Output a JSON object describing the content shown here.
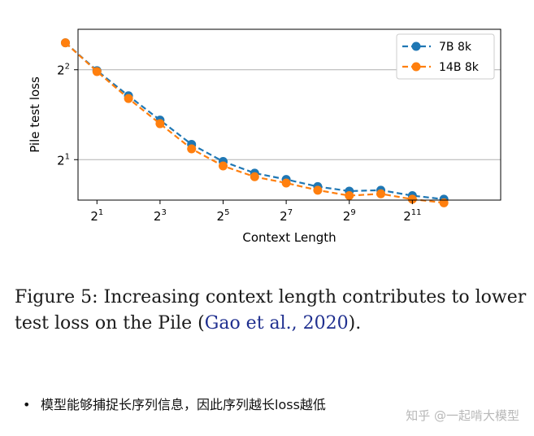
{
  "chart_data": {
    "type": "line",
    "xscale": "log2",
    "yscale": "log2",
    "xlabel": "Context Length",
    "ylabel": "Pile test loss",
    "xlim": [
      0.4,
      13.8
    ],
    "ylim": [
      0.55,
      2.45
    ],
    "x_ticks": [
      {
        "base": "2",
        "exp": "1",
        "value": 1
      },
      {
        "base": "2",
        "exp": "3",
        "value": 3
      },
      {
        "base": "2",
        "exp": "5",
        "value": 5
      },
      {
        "base": "2",
        "exp": "7",
        "value": 7
      },
      {
        "base": "2",
        "exp": "9",
        "value": 9
      },
      {
        "base": "2",
        "exp": "11",
        "value": 11
      }
    ],
    "y_ticks": [
      {
        "base": "2",
        "exp": "1",
        "value": 1
      },
      {
        "base": "2",
        "exp": "2",
        "value": 2
      }
    ],
    "grid": "horizontal",
    "legend_position": "top-right",
    "series": [
      {
        "name": "7B 8k",
        "color": "#1f77b4",
        "x_log2": [
          0,
          1,
          2,
          3,
          4,
          5,
          6,
          7,
          8,
          9,
          10,
          11,
          12
        ],
        "log2_loss": [
          2.3,
          1.99,
          1.71,
          1.44,
          1.17,
          0.98,
          0.85,
          0.78,
          0.7,
          0.65,
          0.66,
          0.6,
          0.56
        ]
      },
      {
        "name": "14B 8k",
        "color": "#ff7f0e",
        "x_log2": [
          0,
          1,
          2,
          3,
          4,
          5,
          6,
          7,
          8,
          9,
          10,
          11,
          12
        ],
        "log2_loss": [
          2.3,
          1.98,
          1.68,
          1.4,
          1.12,
          0.93,
          0.81,
          0.74,
          0.66,
          0.6,
          0.62,
          0.56,
          0.52
        ]
      }
    ]
  },
  "caption": {
    "prefix": "Figure 5: Increasing context length contributes to lower test loss on the Pile (",
    "citation": "Gao et al., 2020",
    "suffix": ")."
  },
  "bullet": {
    "symbol": "•",
    "text": "模型能够捕捉长序列信息，因此序列越长loss越低"
  },
  "watermark": "知乎 @一起啃大模型"
}
